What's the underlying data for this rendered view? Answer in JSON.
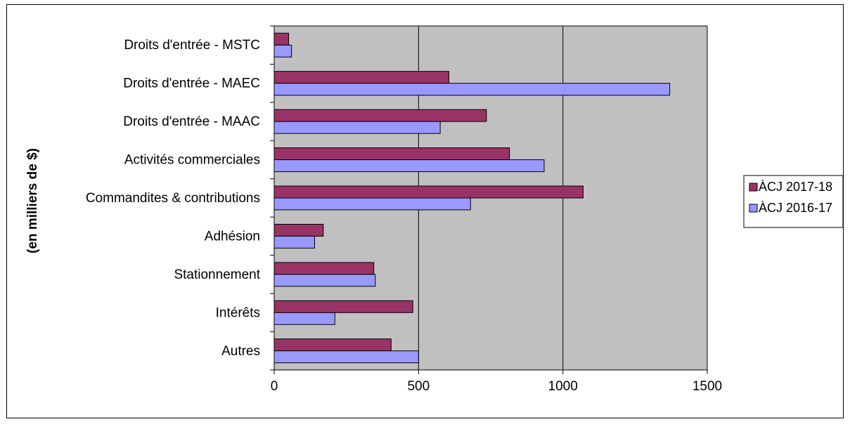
{
  "chart_data": {
    "type": "bar",
    "orientation": "horizontal",
    "categories": [
      "Droits d'entrée - MSTC",
      "Droits d'entrée - MAEC",
      "Droits d'entrée - MAAC",
      "Activités commerciales",
      "Commandites & contributions",
      "Adhésion",
      "Stationnement",
      "Intérêts",
      "Autres"
    ],
    "series": [
      {
        "name": "ÀCJ 2017-18",
        "color": "#993366",
        "values": [
          50,
          605,
          735,
          815,
          1070,
          170,
          345,
          480,
          405
        ]
      },
      {
        "name": "ÀCJ 2016-17",
        "color": "#9999ff",
        "values": [
          60,
          1370,
          575,
          935,
          680,
          140,
          350,
          210,
          500
        ]
      }
    ],
    "title": "",
    "ylabel": "(en milliers de $)",
    "xlabel": "",
    "xlim": [
      0,
      1500
    ],
    "xticks": [
      0,
      500,
      1000,
      1500
    ],
    "grid": true,
    "plot_background": "#c0c0c0",
    "legend_position": "right"
  }
}
